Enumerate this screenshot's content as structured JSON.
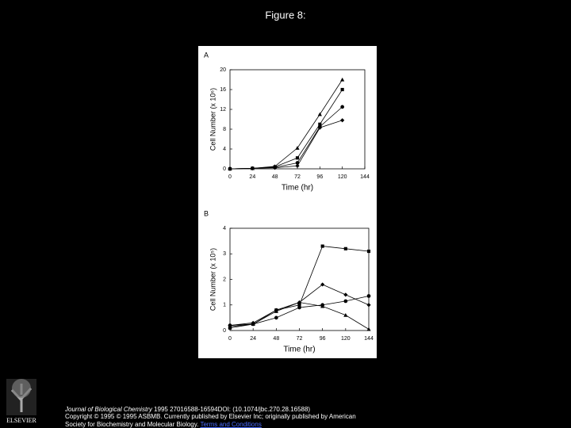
{
  "slide_title": "Figure 8:",
  "chart_data": [
    {
      "type": "line",
      "title": "A",
      "xlabel": "Time (hr)",
      "ylabel": "Cell Number (x 10⁶)",
      "x": [
        0,
        24,
        48,
        72,
        96,
        120
      ],
      "xlim": [
        0,
        144
      ],
      "xticks": [
        0,
        24,
        48,
        72,
        96,
        120,
        144
      ],
      "ylim": [
        0,
        20
      ],
      "yticks": [
        0,
        4,
        8,
        12,
        16,
        20
      ],
      "series": [
        {
          "marker": "triangle",
          "color": "#000000",
          "values": [
            0,
            0.1,
            0.5,
            4.2,
            11,
            18
          ]
        },
        {
          "marker": "square",
          "color": "#000000",
          "values": [
            0,
            0.1,
            0.4,
            2.2,
            9,
            16
          ]
        },
        {
          "marker": "circle",
          "color": "#000000",
          "values": [
            0,
            0.1,
            0.3,
            1.2,
            8.5,
            12.5
          ]
        },
        {
          "marker": "diamond",
          "color": "#000000",
          "values": [
            0,
            0.1,
            0.2,
            0.6,
            8.3,
            9.8
          ]
        }
      ]
    },
    {
      "type": "line",
      "title": "B",
      "xlabel": "Time (hr)",
      "ylabel": "Cell Number (x 10⁵)",
      "x": [
        0,
        24,
        48,
        72,
        96,
        120,
        144
      ],
      "xlim": [
        0,
        144
      ],
      "xticks": [
        0,
        24,
        48,
        72,
        96,
        120,
        144
      ],
      "ylim": [
        0,
        4
      ],
      "yticks": [
        0,
        1,
        2,
        3,
        4
      ],
      "series": [
        {
          "marker": "square",
          "color": "#000000",
          "values": [
            0.1,
            0.25,
            0.8,
            1.0,
            3.3,
            3.2,
            3.1
          ]
        },
        {
          "marker": "diamond",
          "color": "#000000",
          "values": [
            0.2,
            0.3,
            0.8,
            1.1,
            1.8,
            1.4,
            1.0
          ]
        },
        {
          "marker": "triangle",
          "color": "#000000",
          "values": [
            0.15,
            0.25,
            0.75,
            1.1,
            0.95,
            0.6,
            0.05
          ]
        },
        {
          "marker": "circle",
          "color": "#000000",
          "values": [
            0.2,
            0.25,
            0.5,
            0.9,
            1.0,
            1.15,
            1.35
          ]
        }
      ]
    }
  ],
  "logo": "ELSEVIER",
  "citation": {
    "journal": "Journal of Biological Chemistry",
    "ref": " 1995 27016588-16594DOI: (10.1074/jbc.270.28.16588)",
    "copyright": "Copyright © 1995 © 1995 ASBMB. Currently published by Elsevier Inc; originally published by American",
    "society": "Society for Biochemistry and Molecular Biology. ",
    "link": "Terms and Conditions"
  }
}
